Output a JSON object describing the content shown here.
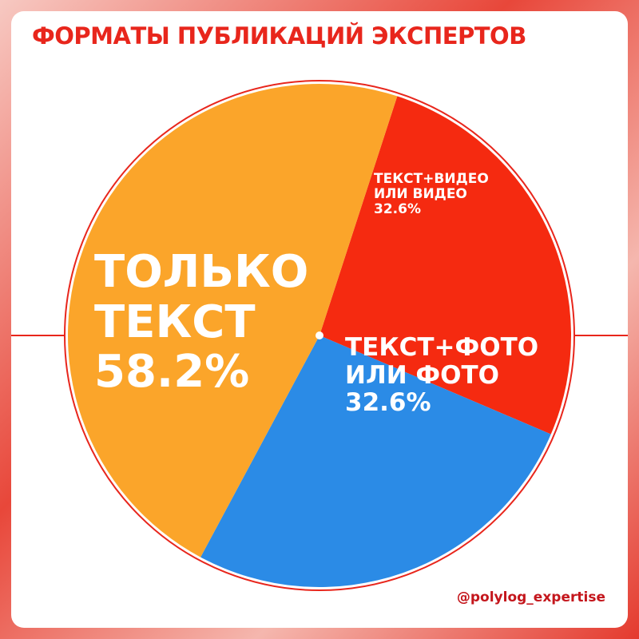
{
  "chart_data": {
    "type": "pie",
    "title": "ФОРМАТЫ ПУБЛИКАЦИЙ ЭКСПЕРТОВ",
    "categories": [
      "ТЕКСТ+ВИДЕО ИЛИ ВИДЕО",
      "ТЕКСТ+ФОТО ИЛИ ФОТО",
      "ТОЛЬКО ТЕКСТ"
    ],
    "values": [
      32.6,
      32.6,
      58.2
    ],
    "value_labels": [
      "32.6%",
      "32.6%",
      "58.2%"
    ],
    "colors": [
      "#f52a10",
      "#2b8be6",
      "#fba52a"
    ],
    "credit": "@polylog_expertise"
  }
}
